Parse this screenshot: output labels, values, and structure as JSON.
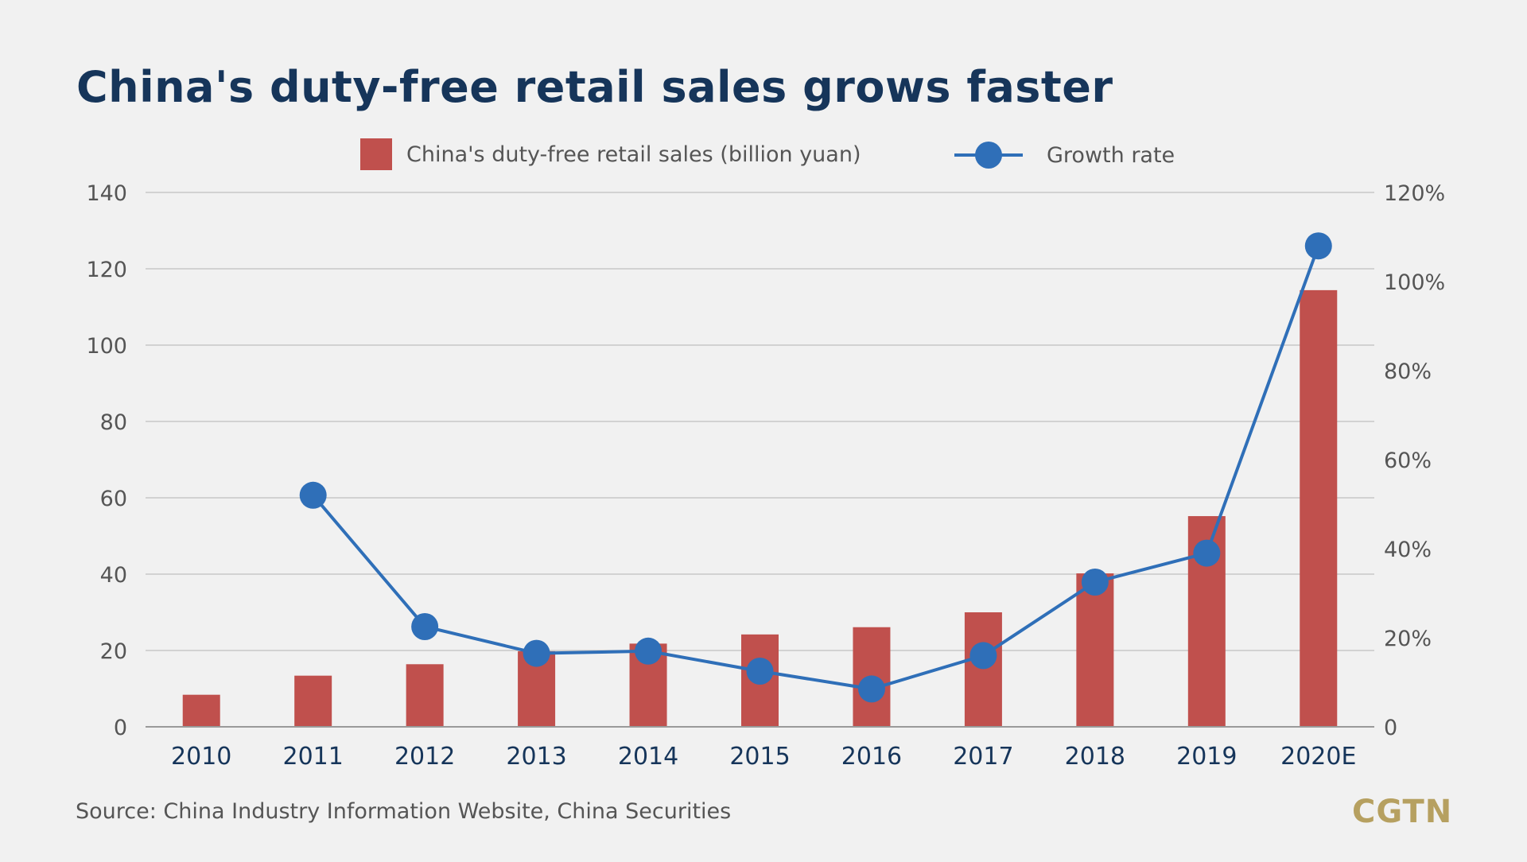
{
  "title": "China's duty-free retail sales grows faster",
  "source": "Source: China Industry Information Website, China Securities",
  "logo": "CGTN",
  "colors": {
    "bar": "#c0504d",
    "line": "#2f6fb8",
    "grid": "#c8c8c8",
    "title": "#16355a"
  },
  "chart_data": {
    "type": "bar",
    "categories": [
      "2010",
      "2011",
      "2012",
      "2013",
      "2014",
      "2015",
      "2016",
      "2017",
      "2018",
      "2019",
      "2020E"
    ],
    "series": [
      {
        "name": "China's duty-free retail sales (billion yuan)",
        "type": "bar",
        "axis": "left",
        "values": [
          8.4,
          13.4,
          16.4,
          19.8,
          21.8,
          24.2,
          26.1,
          30.0,
          40.2,
          55.2,
          114.4
        ]
      },
      {
        "name": "Growth rate",
        "type": "line",
        "axis": "right",
        "values": [
          null,
          52,
          22.5,
          16.5,
          17,
          12.5,
          8.5,
          16,
          32.5,
          39,
          108
        ]
      }
    ],
    "y_left": {
      "min": 0,
      "max": 140,
      "ticks": [
        "0",
        "20",
        "40",
        "60",
        "80",
        "100",
        "120",
        "140"
      ]
    },
    "y_right": {
      "min": 0,
      "max": 120,
      "ticks": [
        "0",
        "20%",
        "40%",
        "60%",
        "80%",
        "100%",
        "120%"
      ]
    },
    "grid": true,
    "legend_position": "top"
  }
}
